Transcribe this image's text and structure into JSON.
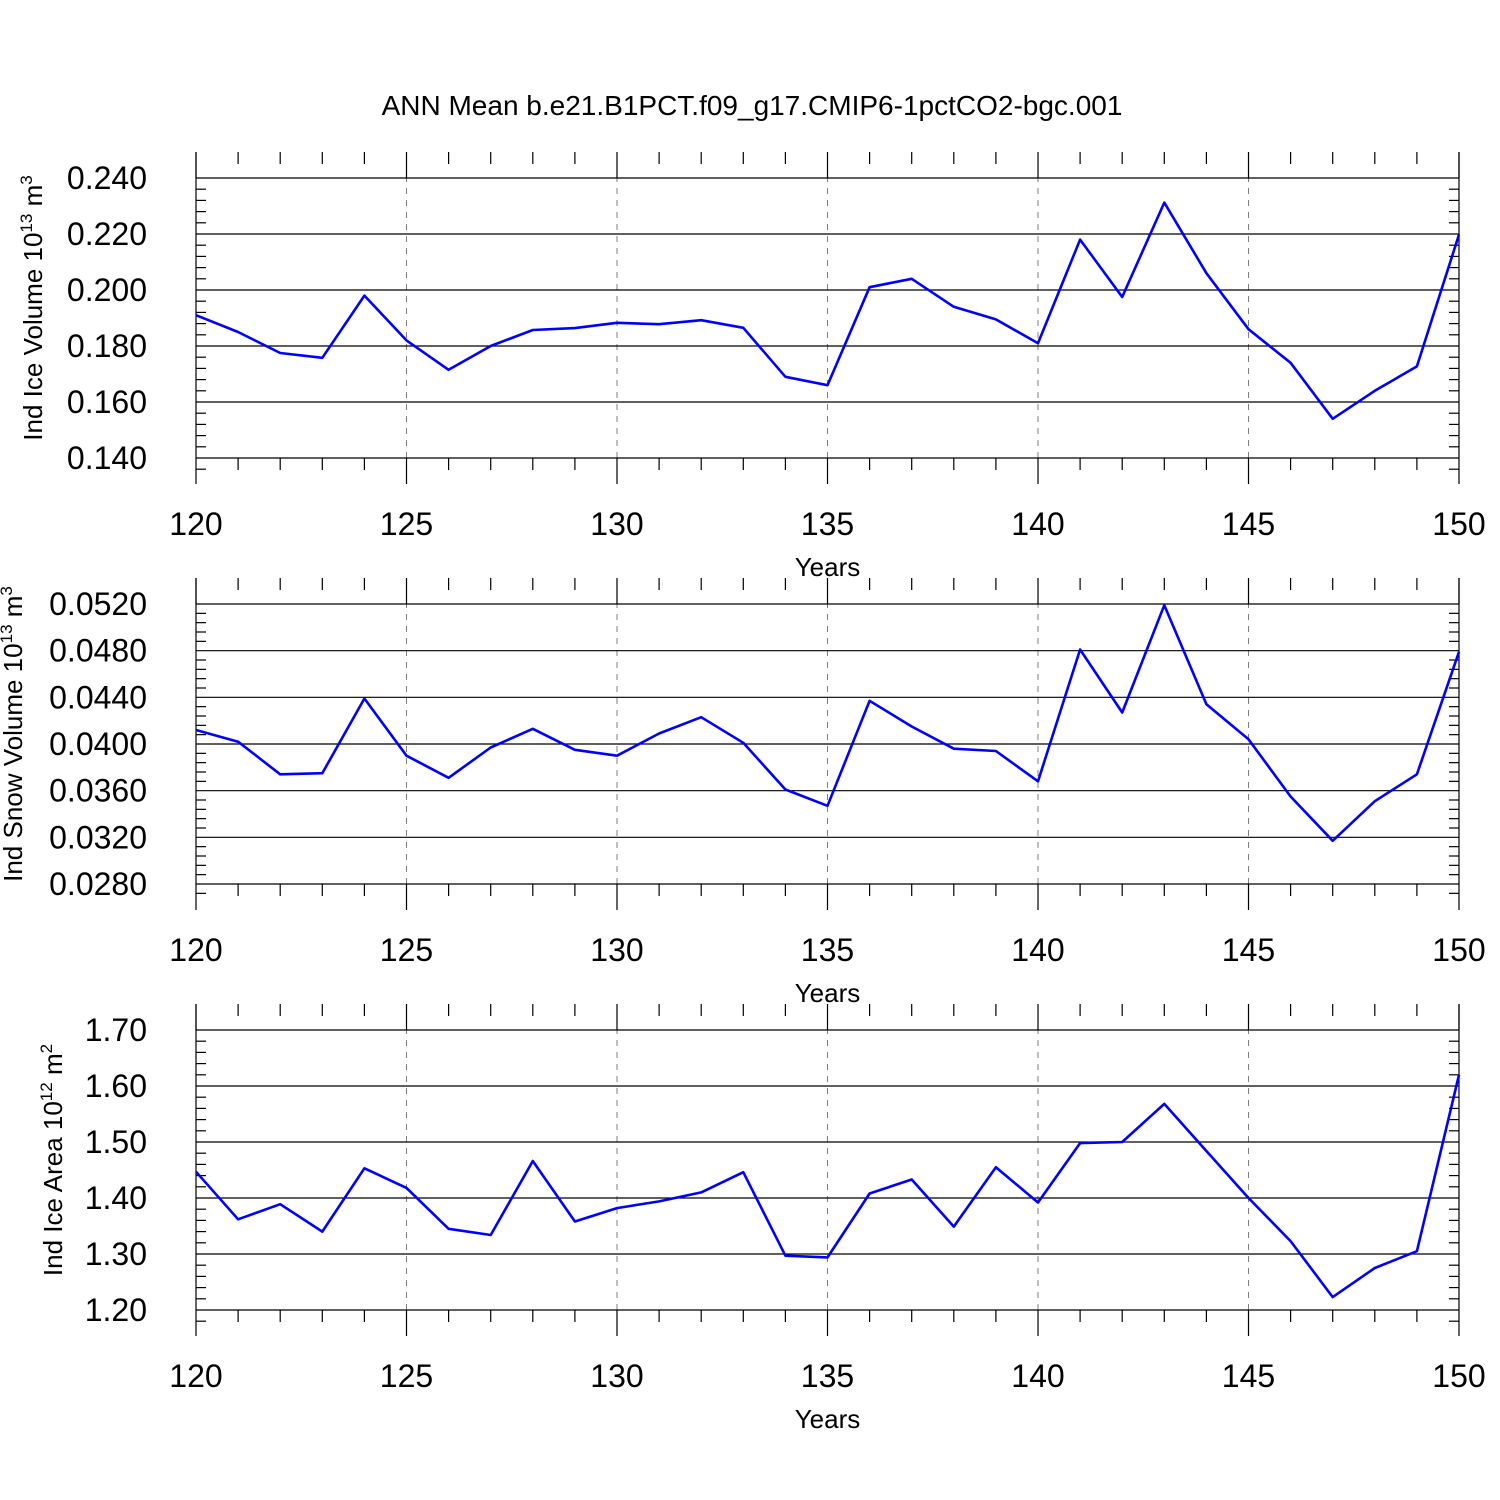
{
  "title": "ANN Mean b.e21.B1PCT.f09_g17.CMIP6-1pctCO2-bgc.001",
  "chart_data": [
    {
      "type": "line",
      "xlabel": "Years",
      "ylabel": "Ind Ice Volume 10",
      "ylabel_sup": "13",
      "ylabel_unit": "m",
      "ylabel_unit_sup": "3",
      "xlim": [
        120,
        150
      ],
      "ylim": [
        0.14,
        0.24
      ],
      "grid": "vertical dashed at major x ticks",
      "xticks": [
        120,
        125,
        130,
        135,
        140,
        145,
        150
      ],
      "yticks": [
        "0.140",
        "0.160",
        "0.180",
        "0.200",
        "0.220",
        "0.240"
      ],
      "color": "#0000ff",
      "x": [
        120,
        121,
        122,
        123,
        124,
        125,
        126,
        127,
        128,
        129,
        130,
        131,
        132,
        133,
        134,
        135,
        136,
        137,
        138,
        139,
        140,
        141,
        142,
        143,
        144,
        145,
        146,
        147,
        148,
        149,
        150
      ],
      "values": [
        0.191,
        0.185,
        0.1775,
        0.1758,
        0.198,
        0.182,
        0.1715,
        0.18,
        0.1857,
        0.1864,
        0.1883,
        0.1878,
        0.1892,
        0.1865,
        0.169,
        0.166,
        0.201,
        0.204,
        0.194,
        0.1895,
        0.181,
        0.218,
        0.1975,
        0.2312,
        0.206,
        0.186,
        0.174,
        0.154,
        0.164,
        0.1727,
        0.2198
      ]
    },
    {
      "type": "line",
      "xlabel": "Years",
      "ylabel": "Ind Snow Volume 10",
      "ylabel_sup": "13",
      "ylabel_unit": "m",
      "ylabel_unit_sup": "3",
      "xlim": [
        120,
        150
      ],
      "ylim": [
        0.028,
        0.052
      ],
      "grid": "vertical dashed at major x ticks",
      "xticks": [
        120,
        125,
        130,
        135,
        140,
        145,
        150
      ],
      "yticks": [
        "0.0280",
        "0.0320",
        "0.0360",
        "0.0400",
        "0.0440",
        "0.0480",
        "0.0520"
      ],
      "color": "#0000ff",
      "x": [
        120,
        121,
        122,
        123,
        124,
        125,
        126,
        127,
        128,
        129,
        130,
        131,
        132,
        133,
        134,
        135,
        136,
        137,
        138,
        139,
        140,
        141,
        142,
        143,
        144,
        145,
        146,
        147,
        148,
        149,
        150
      ],
      "values": [
        0.0412,
        0.0402,
        0.0374,
        0.0375,
        0.0439,
        0.039,
        0.0371,
        0.0397,
        0.0413,
        0.0395,
        0.039,
        0.0409,
        0.0423,
        0.0401,
        0.0361,
        0.0347,
        0.0437,
        0.0415,
        0.0396,
        0.0394,
        0.0368,
        0.0481,
        0.0427,
        0.0519,
        0.0434,
        0.0404,
        0.0355,
        0.0317,
        0.0351,
        0.0374,
        0.0479
      ]
    },
    {
      "type": "line",
      "xlabel": "Years",
      "ylabel": "Ind Ice Area 10",
      "ylabel_sup": "12",
      "ylabel_unit": "m",
      "ylabel_unit_sup": "2",
      "xlim": [
        120,
        150
      ],
      "ylim": [
        1.2,
        1.7
      ],
      "grid": "vertical dashed at major x ticks",
      "xticks": [
        120,
        125,
        130,
        135,
        140,
        145,
        150
      ],
      "yticks": [
        "1.20",
        "1.30",
        "1.40",
        "1.50",
        "1.60",
        "1.70"
      ],
      "color": "#0000ff",
      "x": [
        120,
        121,
        122,
        123,
        124,
        125,
        126,
        127,
        128,
        129,
        130,
        131,
        132,
        133,
        134,
        135,
        136,
        137,
        138,
        139,
        140,
        141,
        142,
        143,
        144,
        145,
        146,
        147,
        148,
        149,
        150
      ],
      "values": [
        1.447,
        1.362,
        1.389,
        1.34,
        1.453,
        1.418,
        1.345,
        1.334,
        1.466,
        1.358,
        1.382,
        1.394,
        1.41,
        1.446,
        1.297,
        1.294,
        1.408,
        1.433,
        1.349,
        1.455,
        1.392,
        1.498,
        1.5,
        1.568,
        1.484,
        1.4,
        1.323,
        1.223,
        1.275,
        1.305,
        1.62
      ]
    }
  ]
}
